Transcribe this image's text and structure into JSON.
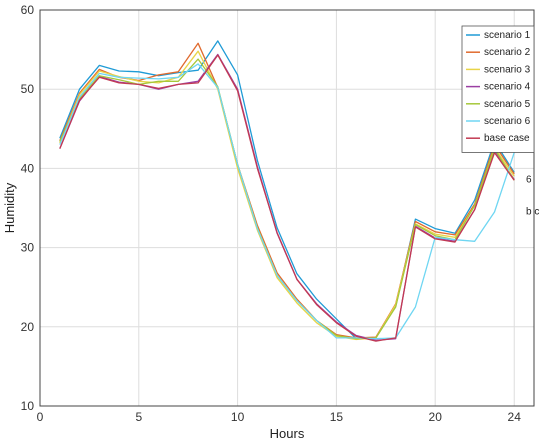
{
  "chart_data": {
    "type": "line",
    "xlabel": "Hours",
    "ylabel": "Humidity",
    "xlim": [
      0,
      25
    ],
    "ylim": [
      10,
      60
    ],
    "xticks": [
      0,
      5,
      10,
      15,
      20,
      24
    ],
    "yticks": [
      10,
      20,
      30,
      40,
      50,
      60
    ],
    "grid": true,
    "legend_position": "top-right",
    "x": [
      1,
      2,
      3,
      4,
      5,
      6,
      7,
      8,
      9,
      10,
      11,
      12,
      13,
      14,
      15,
      16,
      17,
      18,
      19,
      20,
      21,
      22,
      23,
      24
    ],
    "series": [
      {
        "name": "scenario 1",
        "color": "#1f9bd6",
        "values": [
          43.8,
          50.0,
          53.0,
          52.3,
          52.2,
          51.7,
          52.1,
          52.4,
          56.1,
          51.8,
          41.0,
          32.5,
          26.7,
          23.5,
          21.0,
          18.5,
          18.6,
          22.6,
          33.6,
          32.4,
          31.8,
          36.0,
          43.4,
          39.5
        ]
      },
      {
        "name": "scenario 2",
        "color": "#e06a2e",
        "values": [
          43.5,
          49.5,
          52.5,
          51.5,
          51.1,
          51.8,
          52.2,
          55.8,
          50.2,
          40.5,
          32.8,
          26.8,
          23.5,
          20.8,
          19.0,
          18.6,
          18.7,
          22.9,
          33.3,
          32.0,
          31.6,
          35.5,
          43.0,
          39.3
        ]
      },
      {
        "name": "scenario 3",
        "color": "#e8d448",
        "values": [
          43.2,
          49.3,
          52.3,
          51.6,
          51.0,
          50.8,
          51.5,
          54.8,
          50.0,
          40.0,
          32.2,
          26.2,
          23.0,
          20.5,
          18.8,
          18.4,
          18.6,
          22.8,
          33.0,
          31.7,
          31.3,
          35.3,
          42.6,
          39.0
        ]
      },
      {
        "name": "scenario 4",
        "color": "#9b3fa3",
        "values": [
          42.5,
          48.5,
          51.6,
          50.9,
          50.6,
          50.0,
          50.6,
          51.0,
          54.4,
          50.0,
          40.2,
          31.8,
          26.0,
          22.9,
          20.6,
          18.9,
          18.3,
          18.5,
          32.7,
          31.2,
          30.8,
          34.8,
          42.3,
          38.6
        ]
      },
      {
        "name": "scenario 5",
        "color": "#a6c83a",
        "values": [
          43.4,
          48.8,
          51.7,
          51.2,
          50.6,
          51.0,
          51.0,
          53.8,
          50.3,
          40.5,
          32.5,
          26.5,
          23.3,
          20.8,
          18.9,
          18.5,
          18.6,
          22.5,
          32.9,
          31.5,
          31.0,
          35.3,
          42.5,
          38.5
        ]
      },
      {
        "name": "scenario 6",
        "color": "#6fd6f2",
        "values": [
          43.0,
          49.0,
          52.0,
          51.5,
          51.4,
          51.3,
          51.5,
          53.2,
          50.2,
          40.5,
          32.4,
          26.5,
          23.3,
          20.8,
          18.6,
          18.6,
          18.5,
          18.6,
          22.5,
          31.3,
          31.0,
          30.8,
          34.5,
          42.0
        ]
      },
      {
        "name": "base case",
        "color": "#c23a52",
        "values": [
          42.5,
          48.6,
          51.5,
          50.8,
          50.6,
          50.1,
          50.6,
          50.8,
          54.3,
          49.8,
          40.0,
          31.9,
          26.0,
          22.8,
          20.5,
          18.8,
          18.2,
          18.6,
          32.6,
          31.1,
          30.7,
          34.8,
          42.0,
          38.5
        ]
      }
    ],
    "end_labels": [
      "6",
      "b c"
    ]
  }
}
